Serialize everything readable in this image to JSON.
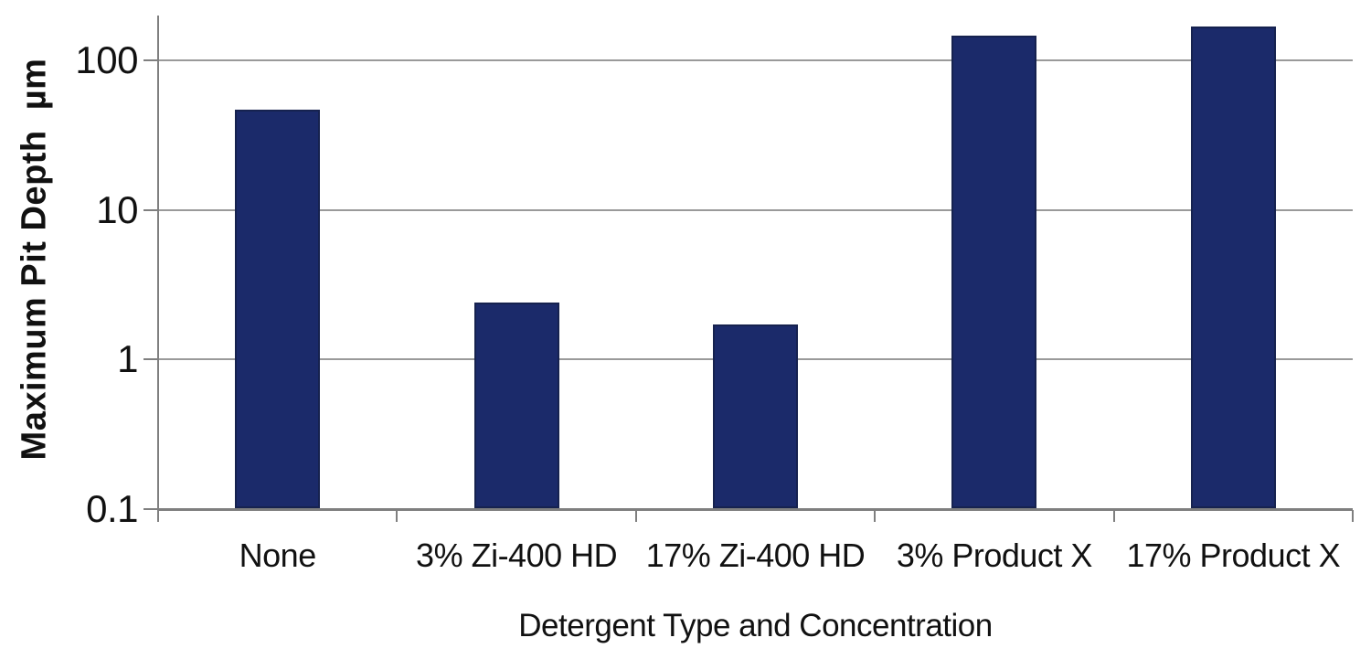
{
  "chart_data": {
    "type": "bar",
    "title": "",
    "xlabel": "Detergent Type and Concentration",
    "ylabel": "Maximum Pit Depth  µm",
    "categories": [
      "None",
      "3% Zi-400 HD",
      "17% Zi-400 HD",
      "3% Product X",
      "17% Product X"
    ],
    "values": [
      47,
      2.4,
      1.7,
      146,
      168
    ],
    "yscale": "log",
    "ylim": [
      0.1,
      200
    ],
    "yticks": [
      0.1,
      1,
      10,
      100
    ],
    "ytick_labels": [
      "0.1",
      "1",
      "10",
      "100"
    ],
    "grid": "horizontal-major",
    "legend": "none",
    "colors": {
      "bar": "#1b2a6a",
      "bar_edge": "#16224f",
      "gridline": "#9a9a9a",
      "axis": "#7f7f7f",
      "text": "#111111",
      "background": "#ffffff"
    }
  }
}
